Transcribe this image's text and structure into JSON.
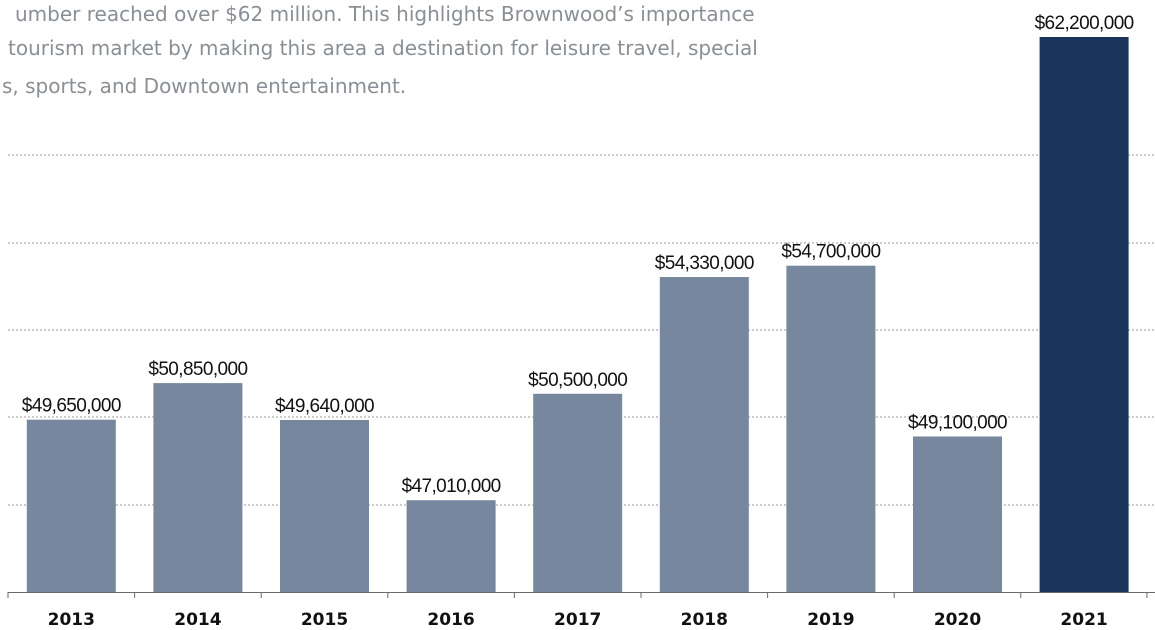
{
  "intro": {
    "lines": [
      "umber reached over $62 million. This highlights Brownwood’s importance",
      " tourism market by making this area a destination for leisure travel, special",
      "s, sports, and Downtown entertainment."
    ]
  },
  "colors": {
    "bar": "#76879e",
    "highlight_bar": "#1b345b",
    "gridline": "#9a9a9a",
    "axis": "#6a6a6a"
  },
  "chart_data": {
    "type": "bar",
    "categories": [
      "2013",
      "2014",
      "2015",
      "2016",
      "2017",
      "2018",
      "2019",
      "2020",
      "2021"
    ],
    "values": [
      49650000,
      50850000,
      49640000,
      47010000,
      50500000,
      54330000,
      54700000,
      49100000,
      62200000
    ],
    "value_labels": [
      "$49,650,000",
      "$50,850,000",
      "$49,640,000",
      "$47,010,000",
      "$50,500,000",
      "$54,330,000",
      "$54,700,000",
      "$49,100,000",
      "$62,200,000"
    ],
    "highlight_category": "2021",
    "grid": true,
    "legend": "none",
    "title": "",
    "xlabel": "",
    "ylabel": ""
  }
}
